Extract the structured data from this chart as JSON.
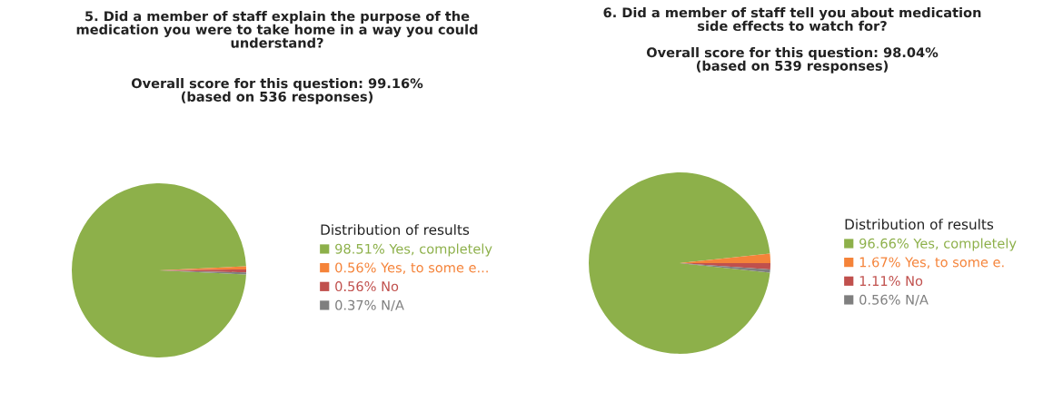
{
  "chart_data": [
    {
      "type": "pie",
      "title": "5. Did a member of staff explain the purpose of the\nmedication you were to take home in a way you could\nunderstand?",
      "subtitle": "Overall score for this question: 99.16%\n(based on 536 responses)",
      "legend_title": "Distribution of results",
      "legend": "right",
      "categories": [
        "Yes, completely",
        "Yes, to some e...",
        "No",
        "N/A"
      ],
      "values": [
        98.51,
        0.56,
        0.56,
        0.37
      ],
      "value_labels": [
        "98.51%",
        "0.56%",
        "0.56%",
        "0.37%"
      ],
      "colors": [
        "#8db04a",
        "#f58339",
        "#c0504d",
        "#7f7f7f"
      ]
    },
    {
      "type": "pie",
      "title": "6. Did a member of staff tell you about medication\nside effects to watch for?",
      "subtitle": "Overall score for this question: 98.04%\n(based on 539 responses)",
      "legend_title": "Distribution of results",
      "legend": "right",
      "categories": [
        "Yes, completely",
        "Yes, to some e.",
        "No",
        "N/A"
      ],
      "values": [
        96.66,
        1.67,
        1.11,
        0.56
      ],
      "value_labels": [
        "96.66%",
        "1.67%",
        "1.11%",
        "0.56%"
      ],
      "colors": [
        "#8db04a",
        "#f58339",
        "#c0504d",
        "#7f7f7f"
      ]
    }
  ]
}
